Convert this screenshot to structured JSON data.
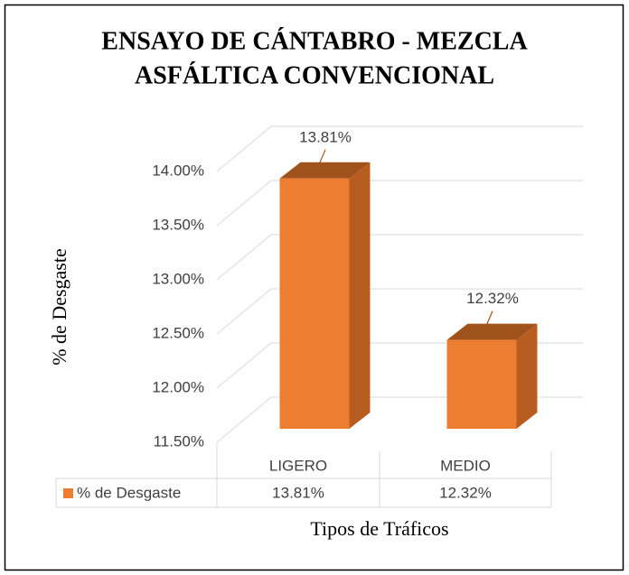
{
  "chart_data": {
    "type": "bar3d",
    "title": "ENSAYO DE CÁNTABRO - MEZCLA ASFÁLTICA CONVENCIONAL",
    "title_lines": [
      "ENSAYO DE CÁNTABRO - MEZCLA",
      "ASFÁLTICA CONVENCIONAL"
    ],
    "y_label": "% de Desgaste",
    "x_label": "Tipos de Tráficos",
    "categories": [
      "LIGERO",
      "MEDIO"
    ],
    "series": [
      {
        "name": "% de Desgaste",
        "color": "#ed7d31",
        "values": [
          13.81,
          12.32
        ],
        "value_labels": [
          "13.81%",
          "12.32%"
        ]
      }
    ],
    "ylim": [
      11.5,
      14.0
    ],
    "yticks": [
      {
        "value": 11.5,
        "label": "11.50%"
      },
      {
        "value": 12.0,
        "label": "12.00%"
      },
      {
        "value": 12.5,
        "label": "12.50%"
      },
      {
        "value": 13.0,
        "label": "13.00%"
      },
      {
        "value": 13.5,
        "label": "13.50%"
      },
      {
        "value": 14.0,
        "label": "14.00%"
      }
    ],
    "grid": true,
    "data_table": true
  }
}
